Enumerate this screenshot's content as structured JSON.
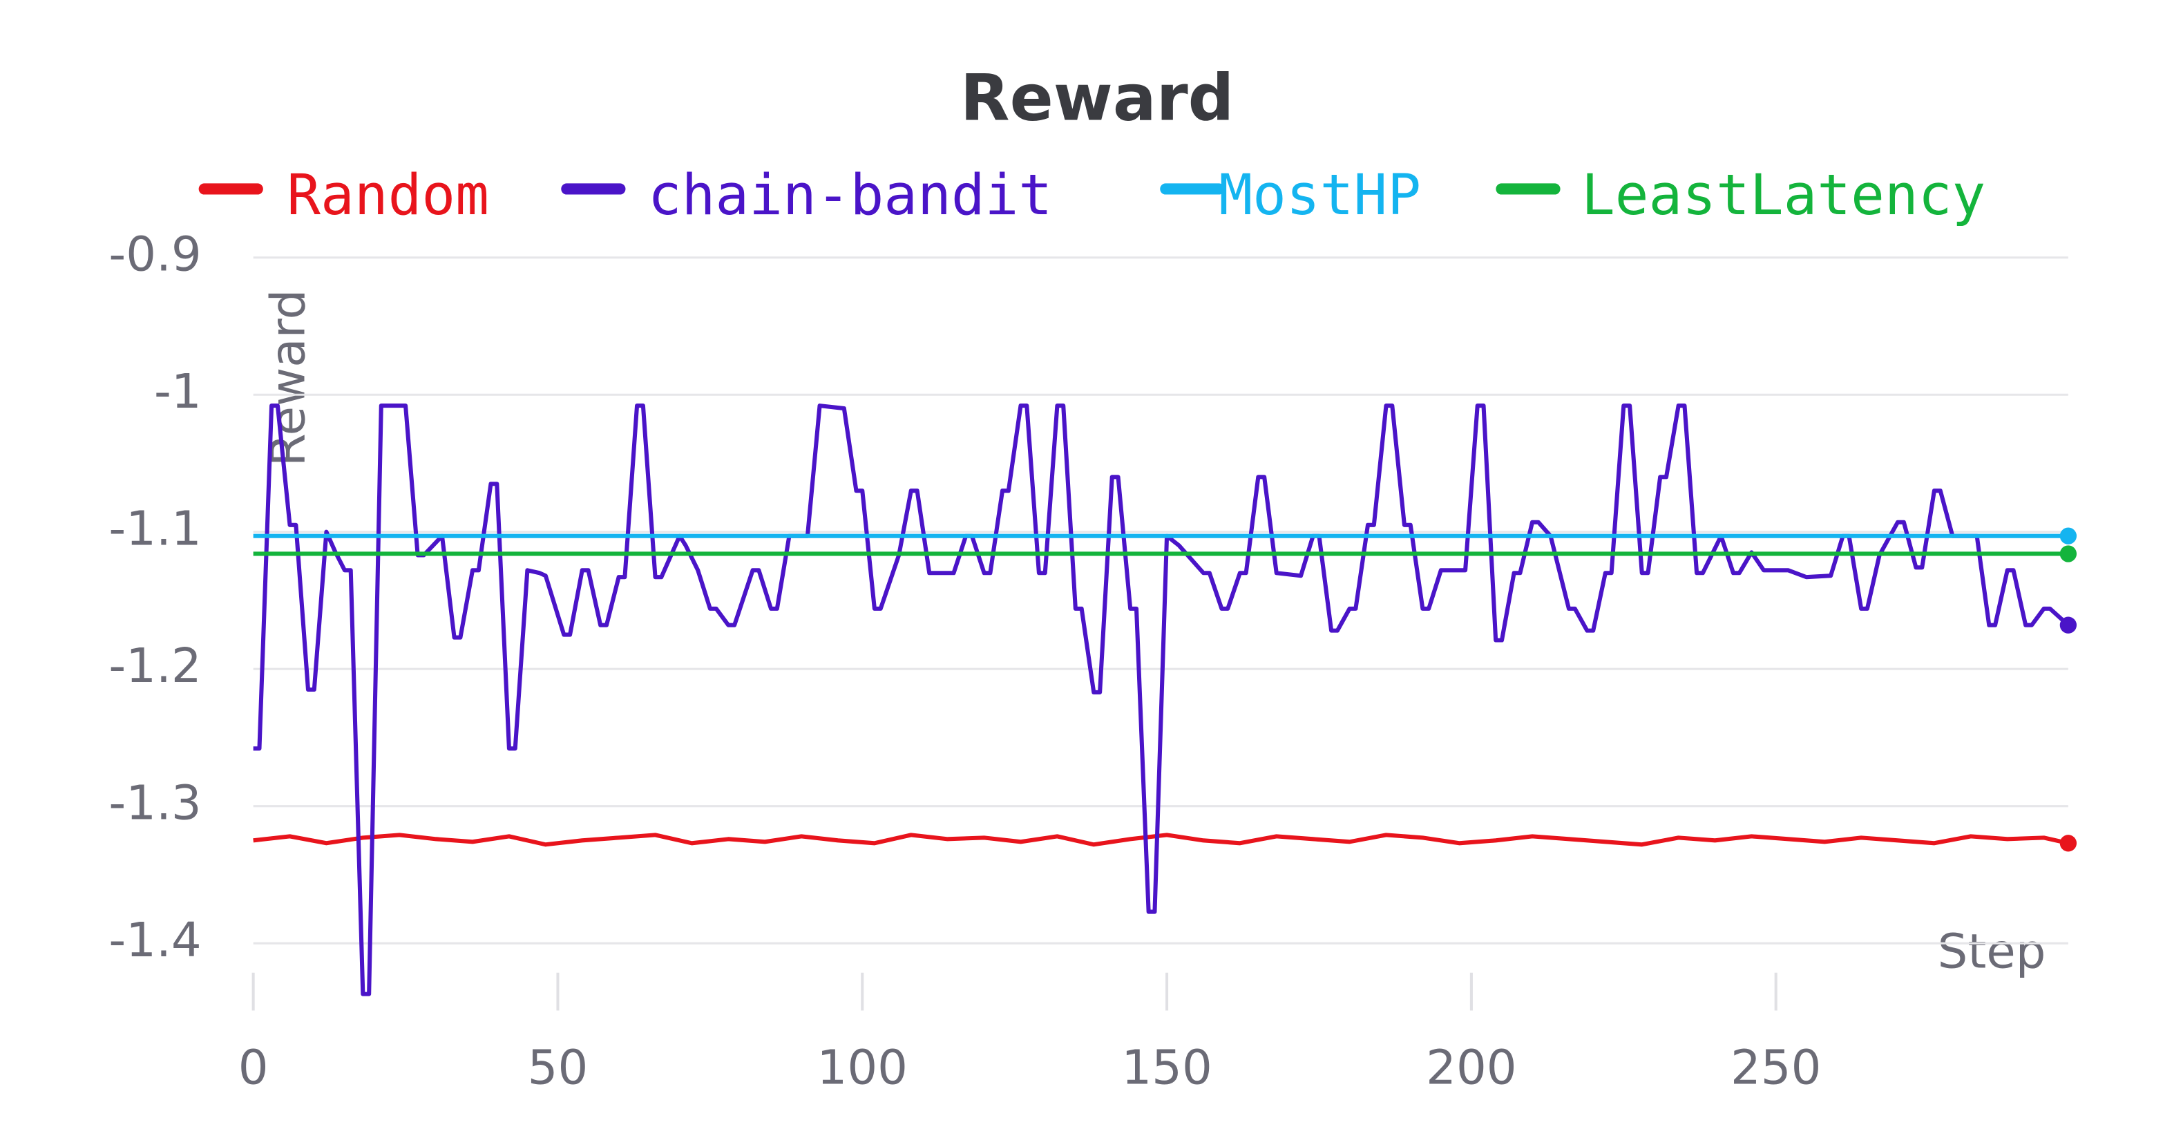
{
  "chart_data": {
    "type": "line",
    "title": "Reward",
    "xlabel": "Step",
    "ylabel": "Reward",
    "xlim": [
      0,
      298
    ],
    "xticks": [
      0,
      50,
      100,
      150,
      200,
      250
    ],
    "ylim": [
      -1.448,
      -0.9
    ],
    "yticks": [
      -0.9,
      -1,
      -1.1,
      -1.2,
      -1.3,
      -1.4
    ],
    "grid": true,
    "legend": "top",
    "series": [
      {
        "name": "Random",
        "color": "#e8141c",
        "x": [
          0,
          6,
          12,
          18,
          24,
          30,
          36,
          42,
          48,
          54,
          60,
          66,
          72,
          78,
          84,
          90,
          96,
          102,
          108,
          114,
          120,
          126,
          132,
          138,
          144,
          150,
          156,
          162,
          168,
          174,
          180,
          186,
          192,
          198,
          204,
          210,
          216,
          222,
          228,
          234,
          240,
          246,
          252,
          258,
          264,
          270,
          276,
          282,
          288,
          294,
          298
        ],
        "values": [
          -1.325,
          -1.322,
          -1.327,
          -1.323,
          -1.321,
          -1.324,
          -1.326,
          -1.322,
          -1.328,
          -1.325,
          -1.323,
          -1.321,
          -1.327,
          -1.324,
          -1.326,
          -1.322,
          -1.325,
          -1.327,
          -1.321,
          -1.324,
          -1.323,
          -1.326,
          -1.322,
          -1.328,
          -1.324,
          -1.321,
          -1.325,
          -1.327,
          -1.322,
          -1.324,
          -1.326,
          -1.321,
          -1.323,
          -1.327,
          -1.325,
          -1.322,
          -1.324,
          -1.326,
          -1.328,
          -1.323,
          -1.325,
          -1.322,
          -1.324,
          -1.326,
          -1.323,
          -1.325,
          -1.327,
          -1.322,
          -1.324,
          -1.323,
          -1.327
        ]
      },
      {
        "name": "chain-bandit",
        "color": "#4a14c8",
        "x": [
          0,
          1,
          3,
          4,
          6,
          7,
          9,
          10,
          12,
          13.5,
          15,
          16,
          18,
          19,
          21,
          25,
          27,
          28,
          31,
          33,
          34,
          36,
          37,
          39,
          40,
          42,
          43,
          45,
          47,
          48,
          51,
          52,
          54,
          55,
          57,
          58,
          60,
          61,
          63,
          64,
          66,
          67,
          70,
          71,
          73,
          75,
          76,
          78,
          79,
          82,
          83,
          85,
          86,
          88,
          91,
          93,
          97,
          99,
          100,
          102,
          103,
          106,
          108,
          109,
          111,
          115,
          117,
          118,
          120,
          121,
          123,
          124,
          126,
          127,
          129,
          130,
          132,
          133,
          135,
          136,
          138,
          139,
          141,
          142,
          144,
          145,
          147,
          148,
          150,
          152,
          154,
          156,
          157,
          159,
          160,
          162,
          163,
          165,
          166,
          168,
          172,
          174,
          175,
          177,
          178,
          180,
          181,
          183,
          184,
          186,
          187,
          189,
          190,
          192,
          193,
          195,
          199,
          201,
          202,
          204,
          205,
          207,
          208,
          210,
          211,
          213,
          216,
          217,
          219,
          220,
          222,
          223,
          225,
          226,
          228,
          229,
          231,
          232,
          234,
          235,
          237,
          238,
          241,
          243,
          244,
          246,
          248,
          252,
          255,
          259,
          261,
          262,
          264,
          265,
          267,
          270,
          271,
          273,
          274,
          276,
          277,
          279,
          283,
          285,
          286,
          288,
          289,
          291,
          292,
          294,
          295,
          298
        ],
        "values": [
          -1.258,
          -1.258,
          -1.008,
          -1.008,
          -1.095,
          -1.095,
          -1.215,
          -1.215,
          -1.1,
          -1.115,
          -1.128,
          -1.128,
          -1.437,
          -1.437,
          -1.008,
          -1.008,
          -1.117,
          -1.117,
          -1.103,
          -1.177,
          -1.177,
          -1.128,
          -1.128,
          -1.065,
          -1.065,
          -1.258,
          -1.258,
          -1.128,
          -1.13,
          -1.132,
          -1.175,
          -1.175,
          -1.128,
          -1.128,
          -1.168,
          -1.168,
          -1.133,
          -1.133,
          -1.008,
          -1.008,
          -1.133,
          -1.133,
          -1.103,
          -1.11,
          -1.128,
          -1.156,
          -1.156,
          -1.168,
          -1.168,
          -1.128,
          -1.128,
          -1.156,
          -1.156,
          -1.103,
          -1.103,
          -1.008,
          -1.01,
          -1.07,
          -1.07,
          -1.156,
          -1.156,
          -1.117,
          -1.07,
          -1.07,
          -1.13,
          -1.13,
          -1.103,
          -1.103,
          -1.13,
          -1.13,
          -1.07,
          -1.07,
          -1.008,
          -1.008,
          -1.13,
          -1.13,
          -1.008,
          -1.008,
          -1.156,
          -1.156,
          -1.217,
          -1.217,
          -1.06,
          -1.06,
          -1.156,
          -1.156,
          -1.377,
          -1.377,
          -1.103,
          -1.11,
          -1.12,
          -1.13,
          -1.13,
          -1.156,
          -1.156,
          -1.13,
          -1.13,
          -1.06,
          -1.06,
          -1.13,
          -1.132,
          -1.103,
          -1.103,
          -1.172,
          -1.172,
          -1.156,
          -1.156,
          -1.095,
          -1.095,
          -1.008,
          -1.008,
          -1.095,
          -1.095,
          -1.156,
          -1.156,
          -1.128,
          -1.128,
          -1.008,
          -1.008,
          -1.179,
          -1.179,
          -1.13,
          -1.13,
          -1.093,
          -1.093,
          -1.103,
          -1.156,
          -1.156,
          -1.172,
          -1.172,
          -1.13,
          -1.13,
          -1.008,
          -1.008,
          -1.13,
          -1.13,
          -1.06,
          -1.06,
          -1.008,
          -1.008,
          -1.13,
          -1.13,
          -1.103,
          -1.13,
          -1.13,
          -1.115,
          -1.128,
          -1.128,
          -1.133,
          -1.132,
          -1.103,
          -1.103,
          -1.156,
          -1.156,
          -1.117,
          -1.093,
          -1.093,
          -1.126,
          -1.126,
          -1.07,
          -1.07,
          -1.103,
          -1.103,
          -1.168,
          -1.168,
          -1.128,
          -1.128,
          -1.168,
          -1.168,
          -1.156,
          -1.156,
          -1.168
        ]
      },
      {
        "name": "MostHP",
        "color": "#14b4f0",
        "x": [
          0,
          298
        ],
        "values": [
          -1.103,
          -1.103
        ]
      },
      {
        "name": "LeastLatency",
        "color": "#14b43c",
        "x": [
          0,
          298
        ],
        "values": [
          -1.116,
          -1.116
        ]
      }
    ]
  }
}
